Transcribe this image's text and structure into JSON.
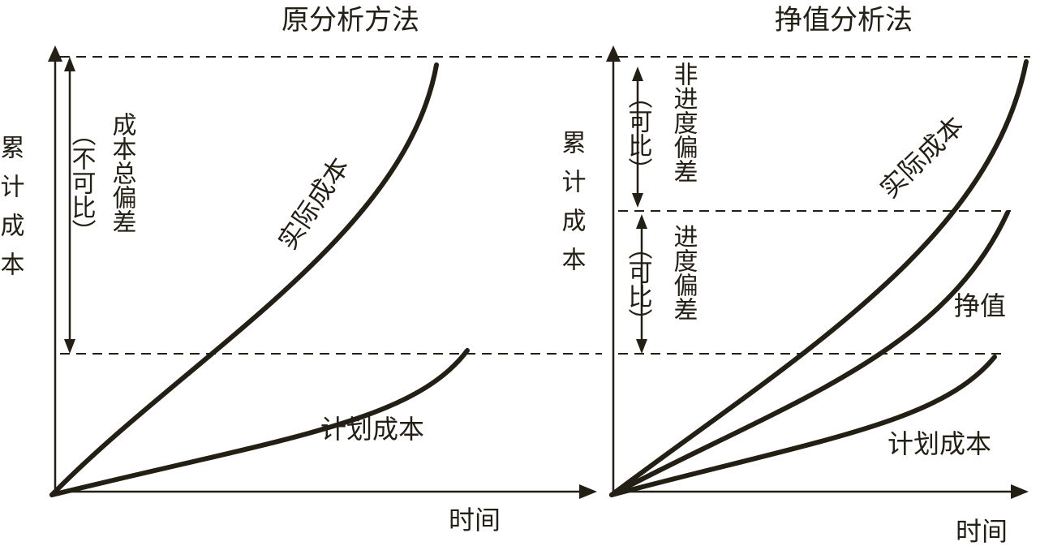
{
  "left_panel": {
    "title": "原分析方法",
    "y_axis_label": "累计成本",
    "x_axis_label": "时间",
    "actual_cost_label": "实际成本",
    "planned_cost_label": "计划成本",
    "deviation_label": "成本总偏差",
    "comparability_note": "（不可比）"
  },
  "right_panel": {
    "title": "挣值分析法",
    "y_axis_label": "累计成本",
    "x_axis_label": "时间",
    "actual_cost_label": "实际成本",
    "earned_value_label": "挣值",
    "planned_cost_label": "计划成本",
    "non_progress_deviation_label": "非进度偏差",
    "non_progress_note": "（可比）",
    "progress_deviation_label": "进度偏差",
    "progress_note": "（可比）"
  },
  "colors": {
    "ink": "#231f14",
    "background": "#ffffff"
  }
}
